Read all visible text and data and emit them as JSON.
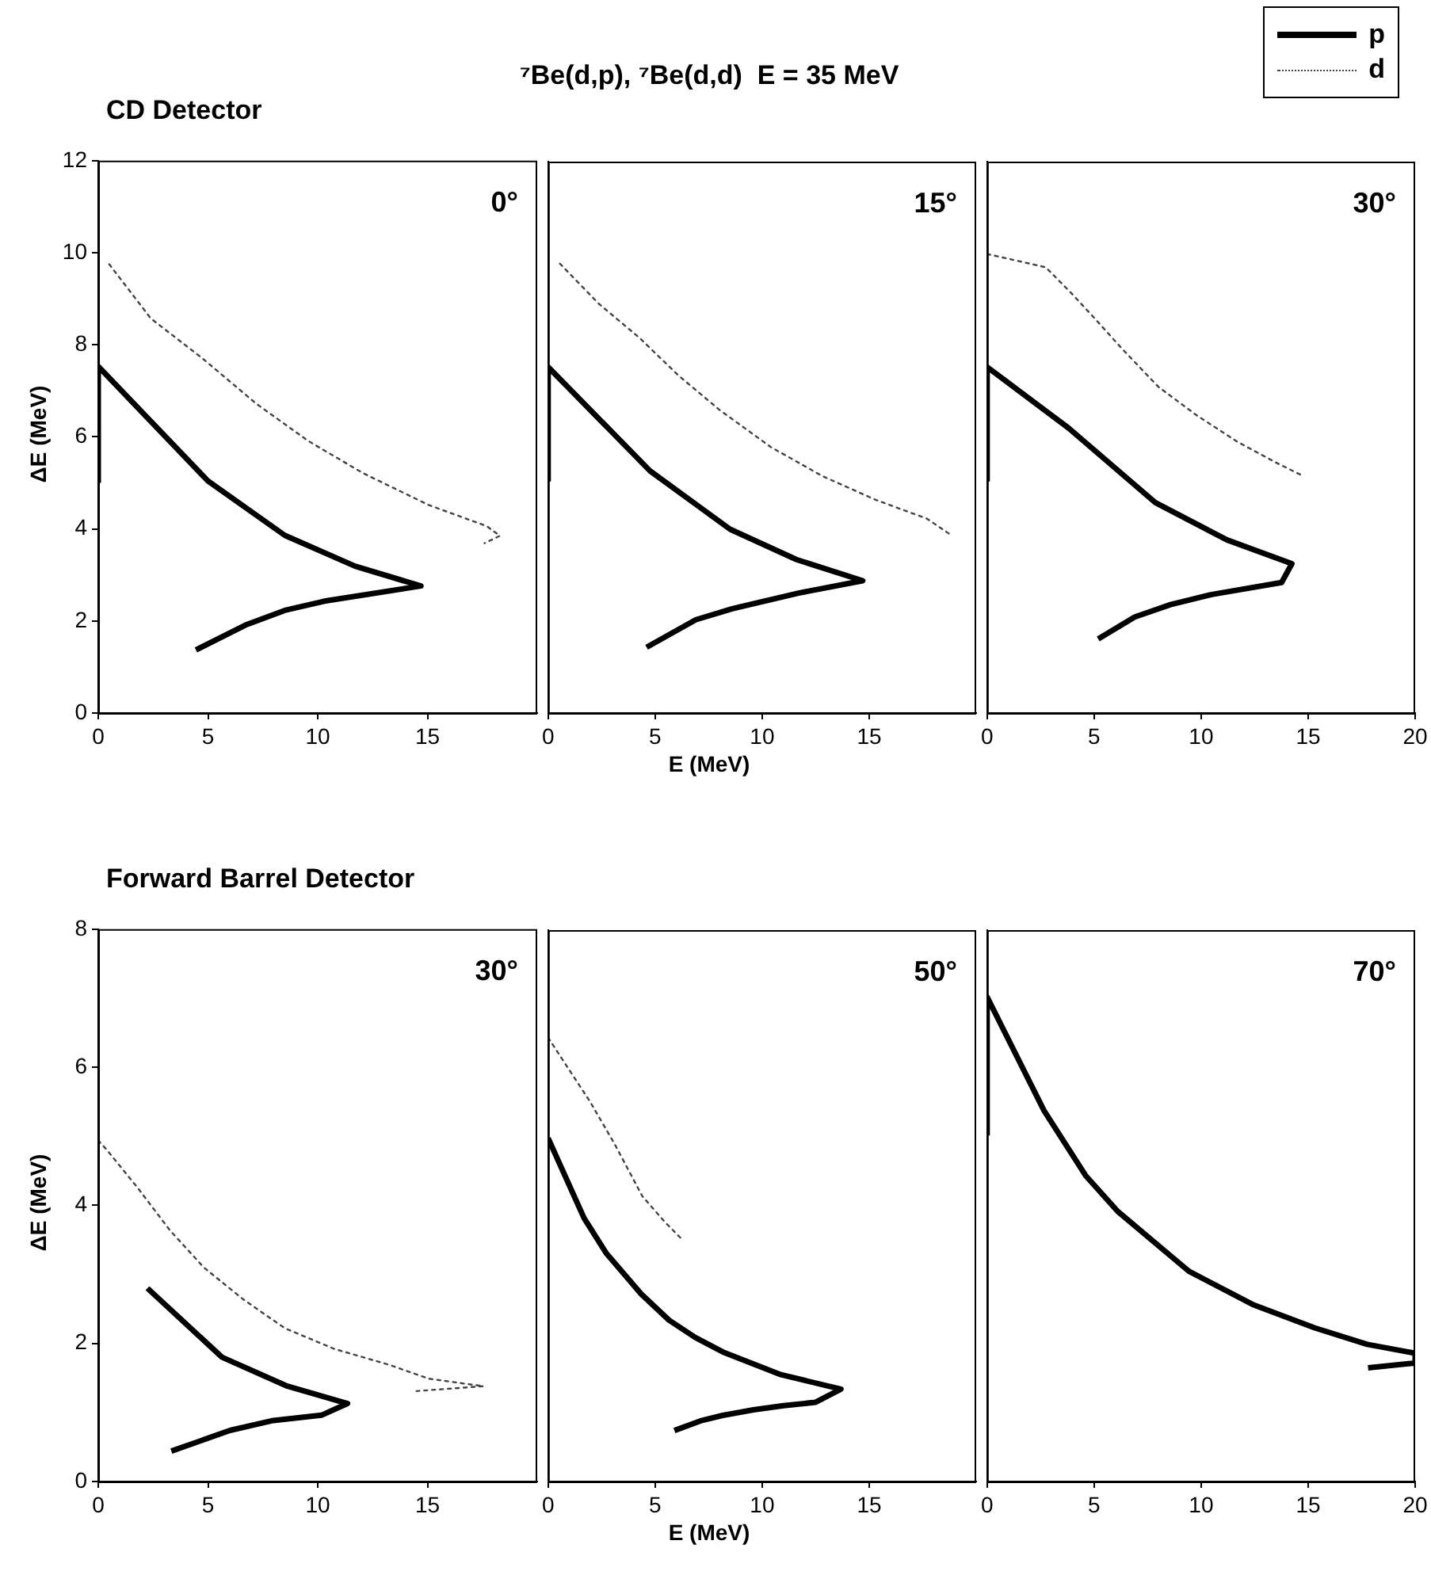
{
  "chart_data": [
    {
      "type": "line",
      "title": "CD Detector",
      "ylabel": "ΔE (MeV)",
      "annotations": [
        "0°"
      ],
      "xlim": [
        0,
        20
      ],
      "xticks": [
        0,
        5,
        10,
        15
      ],
      "ylim": [
        0,
        12
      ],
      "yticks": [
        0,
        2,
        4,
        6,
        8,
        10,
        12
      ],
      "series": [
        {
          "color": "#000000",
          "line_style": "solid",
          "x": [
            0,
            0,
            5,
            8.5,
            11.7,
            14.7,
            10.3,
            8.5,
            6.7,
            4.45
          ],
          "values": [
            5.0,
            7.53,
            5.04,
            3.86,
            3.19,
            2.76,
            2.43,
            2.23,
            1.91,
            1.37
          ]
        },
        {
          "color": "#444444",
          "line_style": "dotted",
          "x": [
            0.5,
            2.4,
            4.76,
            7.2,
            9.57,
            12.07,
            15.05,
            17.7,
            18.3,
            17.6
          ],
          "values": [
            9.75,
            8.57,
            7.7,
            6.72,
            5.91,
            5.21,
            4.52,
            4.06,
            3.85,
            3.69
          ]
        }
      ]
    },
    {
      "type": "line",
      "title": "⁷Be(d,p), ⁷Be(d,d)  E = 35 MeV",
      "xlabel": "E (MeV)",
      "annotations": [
        "15°"
      ],
      "tick_labels": "x",
      "xlim": [
        0,
        20
      ],
      "xticks": [
        0,
        5,
        10,
        15
      ],
      "ylim": [
        0,
        12
      ],
      "yticks": [
        0,
        2,
        4,
        6,
        8,
        10,
        12
      ],
      "series": [
        {
          "color": "#000000",
          "line_style": "solid",
          "x": [
            0,
            0,
            4.76,
            8.5,
            11.6,
            14.7,
            11.7,
            8.6,
            6.9,
            4.6
          ],
          "values": [
            5.04,
            7.53,
            5.27,
            4.0,
            3.34,
            2.88,
            2.61,
            2.27,
            2.03,
            1.43
          ]
        },
        {
          "color": "#444444",
          "line_style": "dotted",
          "x": [
            0.55,
            2.36,
            4.28,
            6.08,
            8.0,
            10.4,
            12.8,
            15.3,
            17.7,
            18.9
          ],
          "values": [
            9.78,
            8.91,
            8.16,
            7.35,
            6.6,
            5.79,
            5.16,
            4.64,
            4.23,
            3.85
          ]
        }
      ]
    },
    {
      "type": "line",
      "annotations": [
        "30°"
      ],
      "tick_labels": "x",
      "legend": "top right",
      "xlim": [
        0,
        20
      ],
      "xticks": [
        0,
        5,
        10,
        15,
        20
      ],
      "ylim": [
        0,
        12
      ],
      "yticks": [
        0,
        2,
        4,
        6,
        8,
        10,
        12
      ],
      "series": [
        {
          "name": "p",
          "color": "#000000",
          "line_style": "solid",
          "x": [
            0,
            0,
            3.81,
            7.86,
            11.2,
            14.24,
            13.76,
            10.5,
            8.57,
            6.9,
            5.19
          ],
          "values": [
            5.04,
            7.53,
            6.2,
            4.58,
            3.77,
            3.25,
            2.84,
            2.58,
            2.36,
            2.09,
            1.61
          ]
        },
        {
          "name": "d",
          "color": "#444444",
          "line_style": "dotted",
          "x": [
            0,
            1.43,
            2.74,
            3.93,
            5.12,
            6.3,
            8.0,
            9.76,
            11.67,
            13.5,
            14.76
          ],
          "values": [
            9.99,
            9.84,
            9.7,
            9.14,
            8.54,
            7.93,
            7.1,
            6.49,
            5.91,
            5.45,
            5.16
          ]
        }
      ]
    },
    {
      "type": "line",
      "title": "Forward Barrel Detector",
      "ylabel": "ΔE (MeV)",
      "annotations": [
        "30°"
      ],
      "xlim": [
        0,
        20
      ],
      "xticks": [
        0,
        5,
        10,
        15
      ],
      "ylim": [
        0,
        8
      ],
      "yticks": [
        0,
        2,
        4,
        6,
        8
      ],
      "series": [
        {
          "color": "#000000",
          "line_style": "solid",
          "x": [
            2.24,
            5.64,
            8.62,
            11.36,
            10.17,
            7.9,
            6.0,
            3.33
          ],
          "values": [
            2.8,
            1.8,
            1.38,
            1.13,
            0.96,
            0.88,
            0.74,
            0.44
          ]
        },
        {
          "color": "#444444",
          "line_style": "dotted",
          "x": [
            0,
            0.4,
            1.83,
            3.26,
            4.81,
            6.6,
            8.5,
            10.76,
            13.26,
            15.05,
            17.55,
            14.5
          ],
          "values": [
            4.94,
            4.8,
            4.24,
            3.64,
            3.1,
            2.64,
            2.22,
            1.92,
            1.69,
            1.49,
            1.38,
            1.31
          ]
        }
      ]
    },
    {
      "type": "line",
      "xlabel": "E (MeV)",
      "annotations": [
        "50°"
      ],
      "tick_labels": "x",
      "xlim": [
        0,
        20
      ],
      "xticks": [
        0,
        5,
        10,
        15
      ],
      "ylim": [
        0,
        8
      ],
      "yticks": [
        0,
        2,
        4,
        6,
        8
      ],
      "series": [
        {
          "color": "#000000",
          "line_style": "solid",
          "x": [
            0,
            1.68,
            2.72,
            4.35,
            5.65,
            6.87,
            8.16,
            10.88,
            13.68,
            12.5,
            11.0,
            9.59,
            8.16,
            7.12,
            5.9
          ],
          "values": [
            4.98,
            3.82,
            3.31,
            2.72,
            2.34,
            2.09,
            1.88,
            1.55,
            1.34,
            1.15,
            1.1,
            1.04,
            0.96,
            0.88,
            0.74
          ]
        },
        {
          "color": "#444444",
          "line_style": "dotted",
          "x": [
            0,
            0.78,
            1.94,
            3.1,
            4.4,
            5.44,
            6.2
          ],
          "values": [
            6.44,
            6.07,
            5.52,
            4.9,
            4.14,
            3.77,
            3.53
          ]
        }
      ]
    },
    {
      "type": "line",
      "annotations": [
        "70°"
      ],
      "tick_labels": "x",
      "xlim": [
        0,
        20
      ],
      "xticks": [
        0,
        5,
        10,
        15,
        20
      ],
      "ylim": [
        0,
        8
      ],
      "yticks": [
        0,
        2,
        4,
        6,
        8
      ],
      "series": [
        {
          "color": "#000000",
          "line_style": "solid",
          "x": [
            0,
            0,
            2.66,
            4.6,
            6.1,
            9.43,
            12.4,
            15.3,
            17.76,
            20,
            20,
            17.8
          ],
          "values": [
            5.02,
            7.03,
            5.38,
            4.44,
            3.92,
            3.05,
            2.57,
            2.23,
            1.99,
            1.86,
            1.72,
            1.65
          ]
        }
      ]
    }
  ]
}
